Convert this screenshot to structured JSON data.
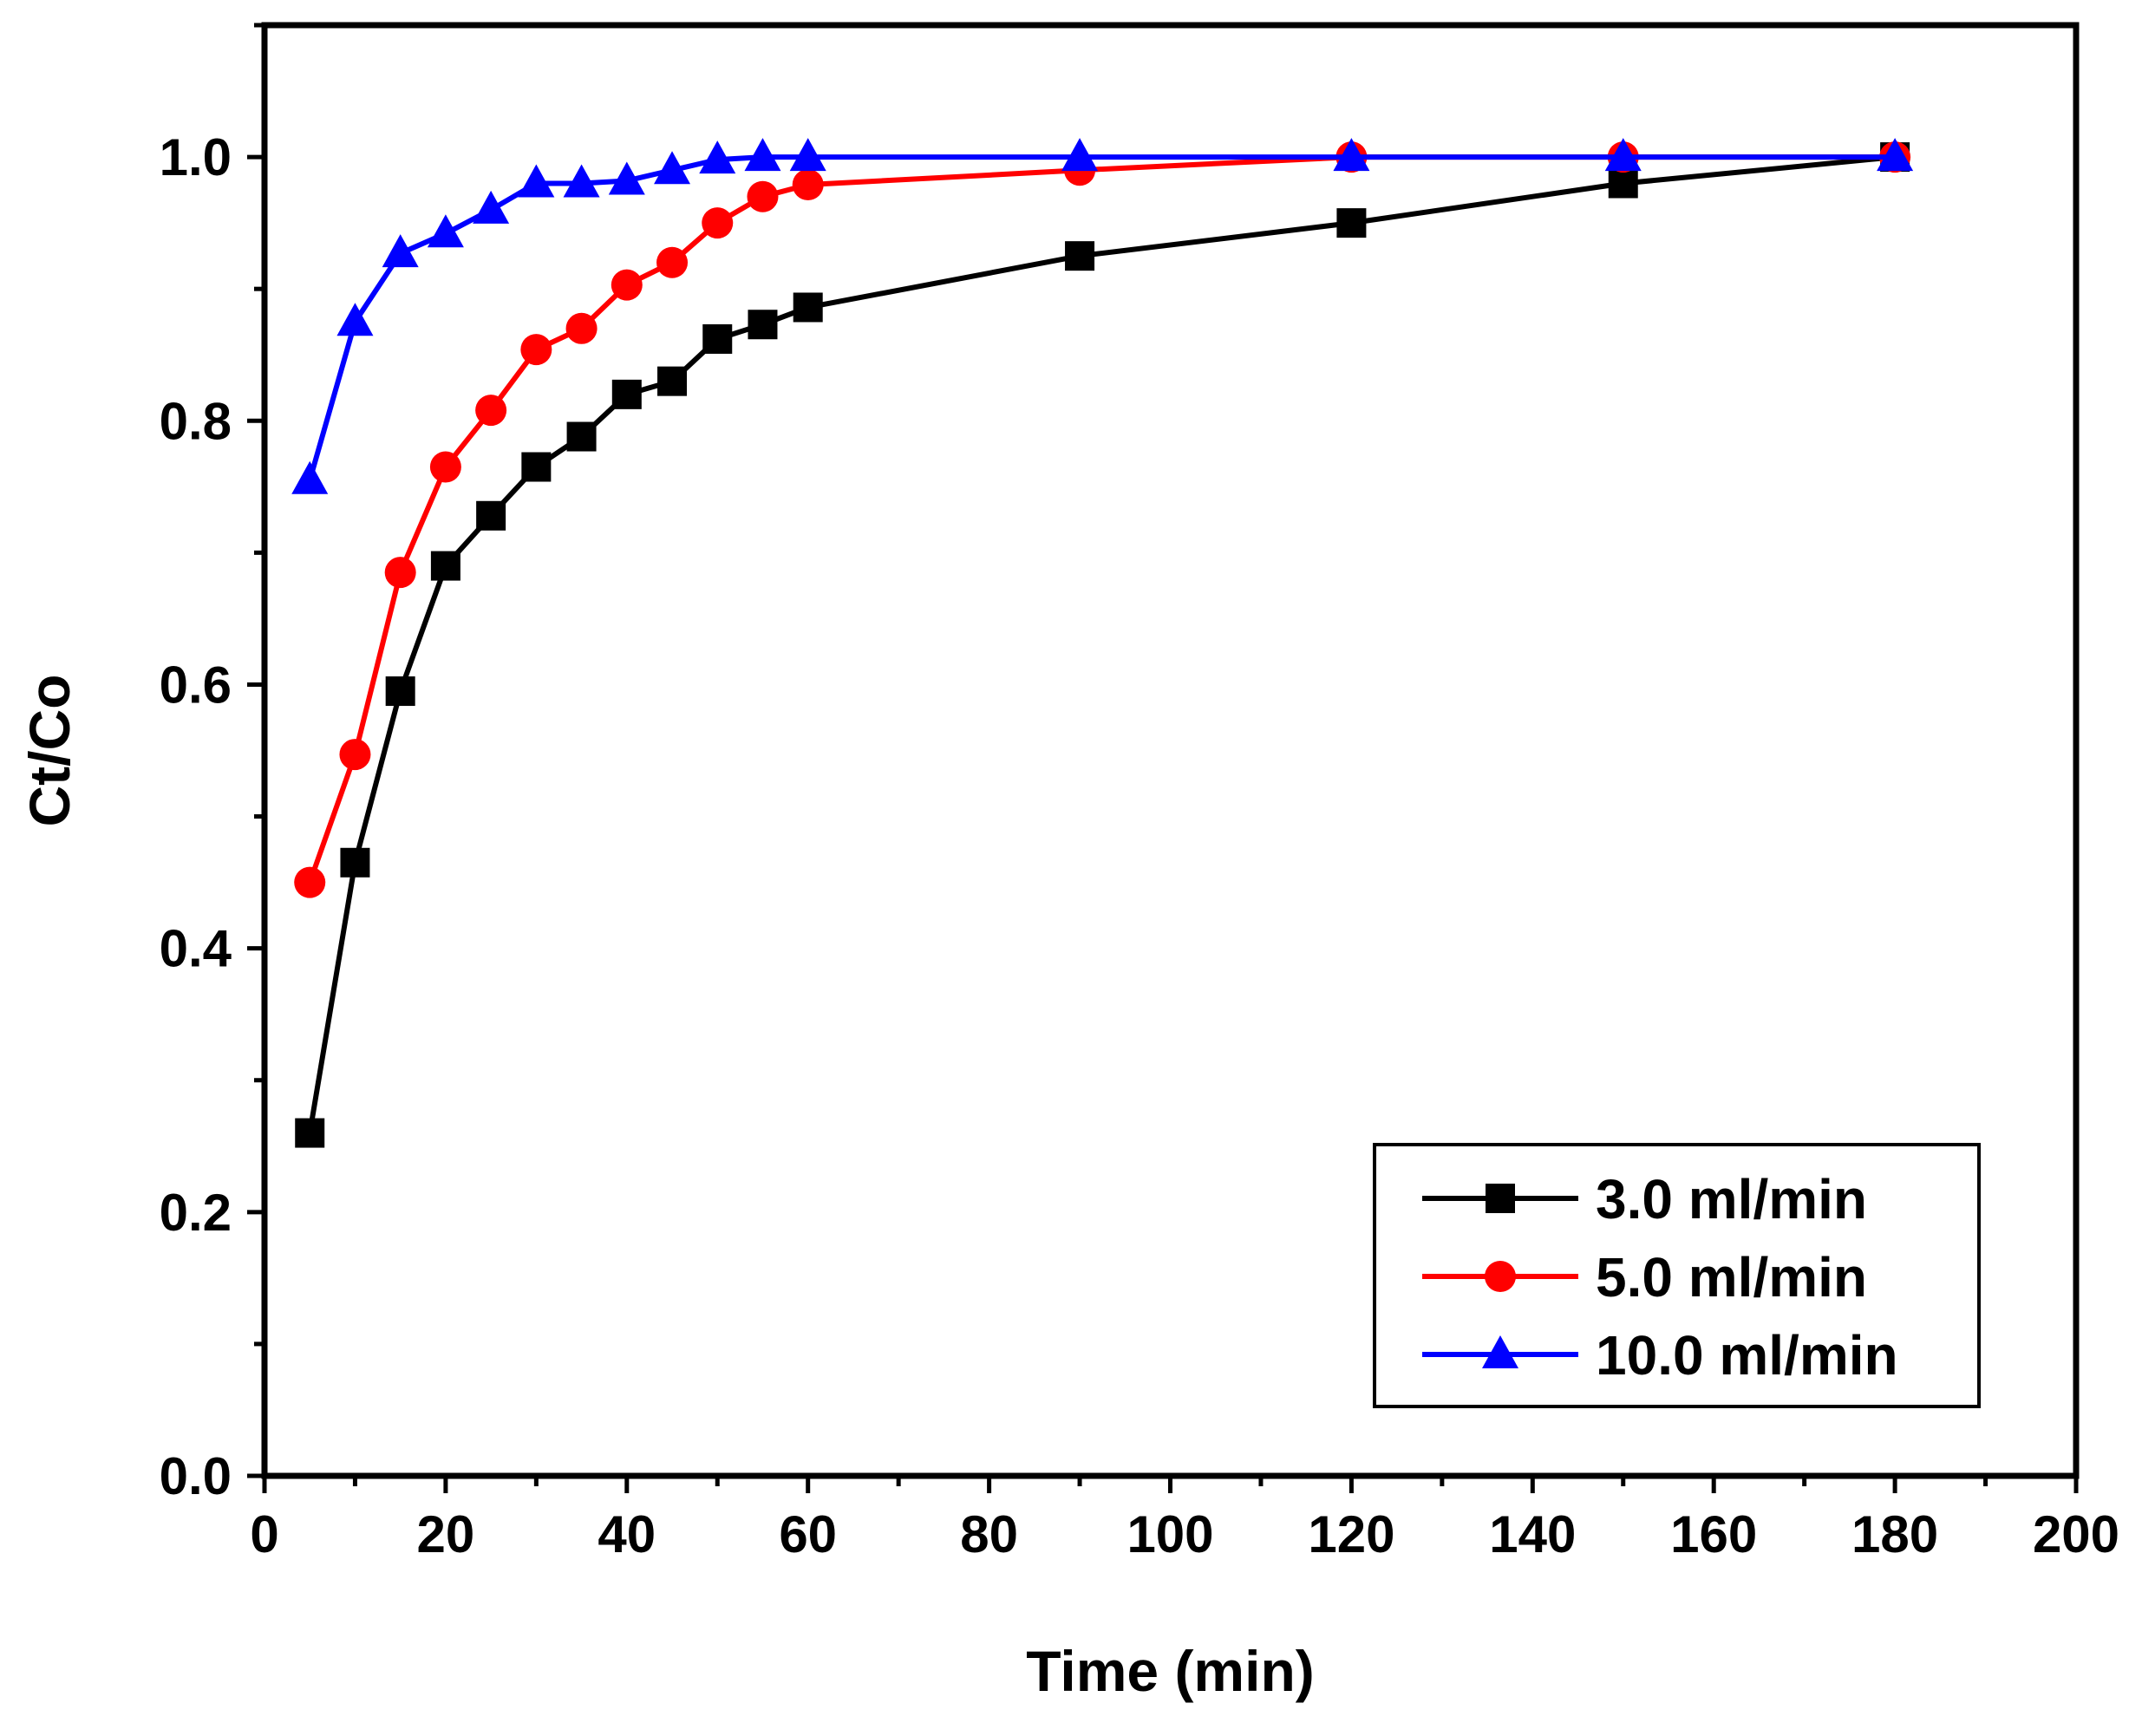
{
  "chart_data": {
    "type": "line",
    "title": "",
    "xlabel": "Time (min)",
    "ylabel": "Ct/Co",
    "xlim": [
      0,
      200
    ],
    "ylim": [
      0.0,
      1.1
    ],
    "x_ticks": [
      0,
      20,
      40,
      60,
      80,
      100,
      120,
      140,
      160,
      180,
      200
    ],
    "x_tick_labels": [
      "0",
      "20",
      "40",
      "60",
      "80",
      "100",
      "120",
      "140",
      "160",
      "180",
      "200"
    ],
    "y_ticks": [
      0.0,
      0.2,
      0.4,
      0.6,
      0.8,
      1.0
    ],
    "y_tick_labels": [
      "0.0",
      "0.2",
      "0.4",
      "0.6",
      "0.8",
      "1.0"
    ],
    "grid": false,
    "legend_position": "bottom-right",
    "series": [
      {
        "name": "3.0 ml/min",
        "color": "#000000",
        "marker": "square",
        "x": [
          5,
          10,
          15,
          20,
          25,
          30,
          35,
          40,
          45,
          50,
          55,
          60,
          90,
          120,
          150,
          180
        ],
        "y": [
          0.26,
          0.465,
          0.595,
          0.69,
          0.728,
          0.765,
          0.788,
          0.82,
          0.83,
          0.862,
          0.873,
          0.886,
          0.925,
          0.95,
          0.98,
          1.0
        ]
      },
      {
        "name": "5.0 ml/min",
        "color": "#ff0000",
        "marker": "circle",
        "x": [
          5,
          10,
          15,
          20,
          25,
          30,
          35,
          40,
          45,
          50,
          55,
          60,
          90,
          120,
          150,
          180
        ],
        "y": [
          0.45,
          0.547,
          0.685,
          0.765,
          0.808,
          0.854,
          0.87,
          0.903,
          0.92,
          0.95,
          0.97,
          0.979,
          0.99,
          1.0,
          1.0,
          1.0
        ]
      },
      {
        "name": "10.0 ml/min",
        "color": "#0000ff",
        "marker": "triangle",
        "x": [
          5,
          10,
          15,
          20,
          25,
          30,
          35,
          40,
          45,
          50,
          55,
          60,
          90,
          120,
          150,
          180
        ],
        "y": [
          0.755,
          0.875,
          0.927,
          0.942,
          0.96,
          0.98,
          0.98,
          0.982,
          0.99,
          0.998,
          1.0,
          1.0,
          1.0,
          1.0,
          1.0,
          1.0
        ]
      }
    ]
  }
}
